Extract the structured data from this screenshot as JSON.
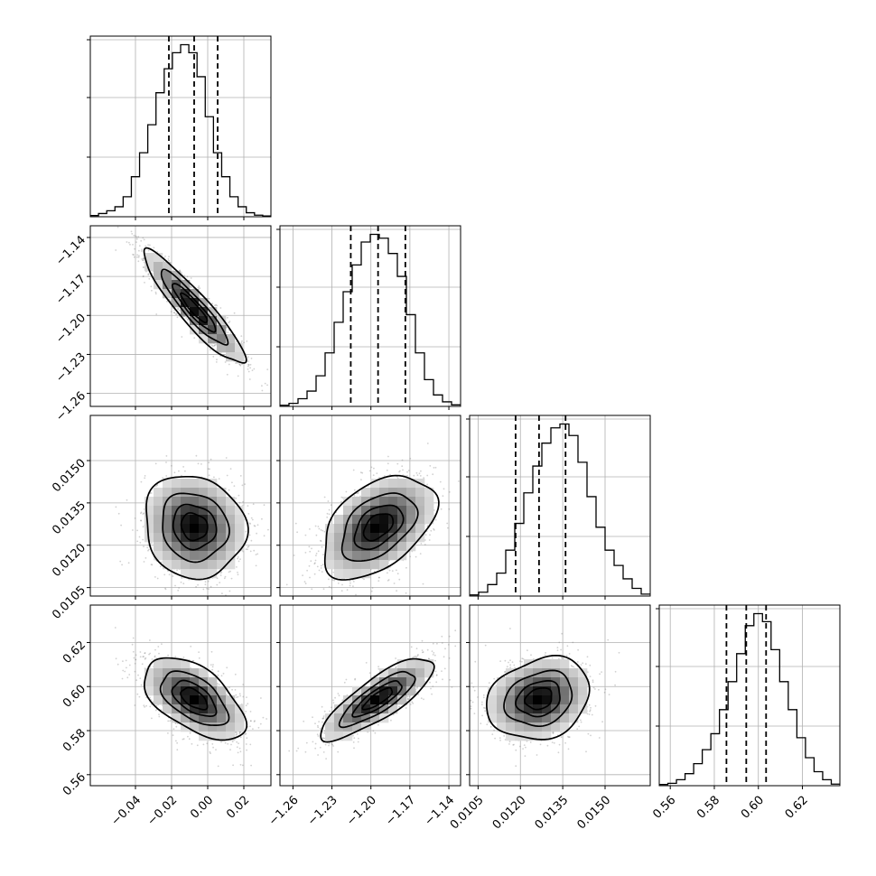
{
  "chart_data": {
    "type": "corner",
    "parameters": [
      {
        "index": 0,
        "range": [
          -0.065,
          0.035
        ],
        "ticks": [
          -0.04,
          -0.02,
          0.0,
          0.02
        ],
        "tick_labels": [
          "−0.04",
          "−0.02",
          "0.00",
          "0.02"
        ],
        "quantiles": [
          -0.0215,
          -0.0075,
          0.0055
        ],
        "hist": [
          0.3,
          0.8,
          1.5,
          2.5,
          5,
          10,
          16,
          23,
          31,
          37,
          41,
          43,
          41,
          35,
          25,
          16,
          10,
          5,
          2.5,
          1,
          0.4,
          0.2
        ]
      },
      {
        "index": 1,
        "range": [
          -1.27,
          -1.131
        ],
        "ticks": [
          -1.26,
          -1.23,
          -1.2,
          -1.17,
          -1.14
        ],
        "tick_labels": [
          "−1.26",
          "−1.23",
          "−1.20",
          "−1.17",
          "−1.14"
        ],
        "quantiles": [
          -1.2155,
          -1.1945,
          -1.1735
        ],
        "hist": [
          0.3,
          0.8,
          2,
          4,
          8,
          14,
          22,
          30,
          37,
          43,
          45,
          44,
          40,
          34,
          24,
          14,
          7,
          3,
          1.2,
          0.4
        ]
      },
      {
        "index": 2,
        "range": [
          0.0102,
          0.0166
        ],
        "ticks": [
          0.0105,
          0.012,
          0.0135,
          0.015
        ],
        "tick_labels": [
          "0.0105",
          "0.0120",
          "0.0135",
          "0.0150"
        ],
        "quantiles": [
          0.01183,
          0.01266,
          0.0136
        ],
        "hist": [
          0.3,
          1,
          3,
          6,
          12,
          19,
          27,
          34,
          40,
          44,
          45,
          42,
          35,
          26,
          18,
          12,
          8,
          4.5,
          2,
          0.5
        ]
      },
      {
        "index": 3,
        "range": [
          0.555,
          0.637
        ],
        "ticks": [
          0.56,
          0.58,
          0.6,
          0.62
        ],
        "tick_labels": [
          "0.56",
          "0.58",
          "0.60",
          "0.62"
        ],
        "quantiles": [
          0.5855,
          0.5945,
          0.6035
        ],
        "hist": [
          0.3,
          0.6,
          1.5,
          3,
          5.5,
          9,
          13,
          19,
          26,
          33,
          40,
          43,
          41,
          34,
          26,
          19,
          12,
          7,
          3.5,
          1.5,
          0.4
        ]
      }
    ],
    "pairs": [
      {
        "x": 0,
        "y": 1,
        "mean": [
          -0.0075,
          -1.1945
        ],
        "sd": [
          0.0135,
          0.021
        ],
        "corr": -0.92
      },
      {
        "x": 0,
        "y": 2,
        "mean": [
          -0.0075,
          0.01266
        ],
        "sd": [
          0.0135,
          0.00088
        ],
        "corr": -0.1
      },
      {
        "x": 1,
        "y": 2,
        "mean": [
          -1.1945,
          0.01266
        ],
        "sd": [
          0.021,
          0.00088
        ],
        "corr": 0.45
      },
      {
        "x": 0,
        "y": 3,
        "mean": [
          -0.0075,
          0.5945
        ],
        "sd": [
          0.0135,
          0.009
        ],
        "corr": -0.55
      },
      {
        "x": 1,
        "y": 3,
        "mean": [
          -1.1945,
          0.5945
        ],
        "sd": [
          0.021,
          0.009
        ],
        "corr": 0.82
      },
      {
        "x": 2,
        "y": 3,
        "mean": [
          0.01266,
          0.5945
        ],
        "sd": [
          0.00088,
          0.009
        ],
        "corr": 0.2
      }
    ],
    "contour_levels_sigma": [
      0.5,
      1.0,
      1.5,
      2.0
    ],
    "quantile_levels": [
      0.16,
      0.5,
      0.84
    ],
    "grid": true
  }
}
